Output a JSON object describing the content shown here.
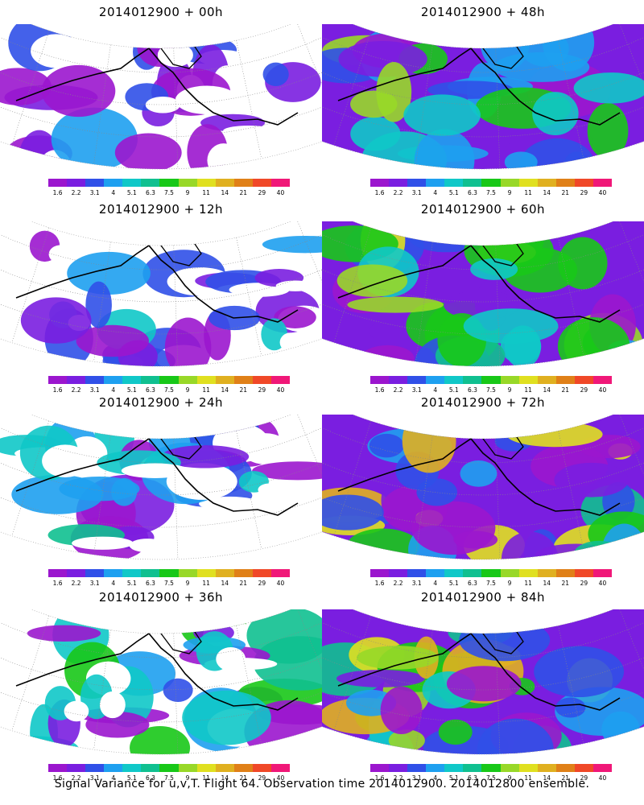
{
  "panels": [
    {
      "title": "2014012900 + 00h",
      "intensity": 0.15
    },
    {
      "title": "2014012900 + 48h",
      "intensity": 0.55
    },
    {
      "title": "2014012900 + 12h",
      "intensity": 0.25
    },
    {
      "title": "2014012900 + 60h",
      "intensity": 0.65
    },
    {
      "title": "2014012900 + 24h",
      "intensity": 0.35
    },
    {
      "title": "2014012900 + 72h",
      "intensity": 0.75
    },
    {
      "title": "2014012900 + 36h",
      "intensity": 0.45
    },
    {
      "title": "2014012900 + 84h",
      "intensity": 0.85
    }
  ],
  "colorbar": {
    "labels": [
      "1.6",
      "2.2",
      "3.1",
      "4",
      "5.1",
      "6.3",
      "7.5",
      "9",
      "11",
      "14",
      "21",
      "29",
      "40"
    ],
    "colors": [
      "#9b16ce",
      "#7a1ee0",
      "#3050e8",
      "#1ea0f0",
      "#10c8c8",
      "#10c090",
      "#18c818",
      "#98d828",
      "#e0e020",
      "#e0b020",
      "#e08018",
      "#f04828",
      "#f01878"
    ]
  },
  "caption": "Signal Variance for u,v,T. Flight 64. Observation time 2014012900. 2014012800 ensemble."
}
